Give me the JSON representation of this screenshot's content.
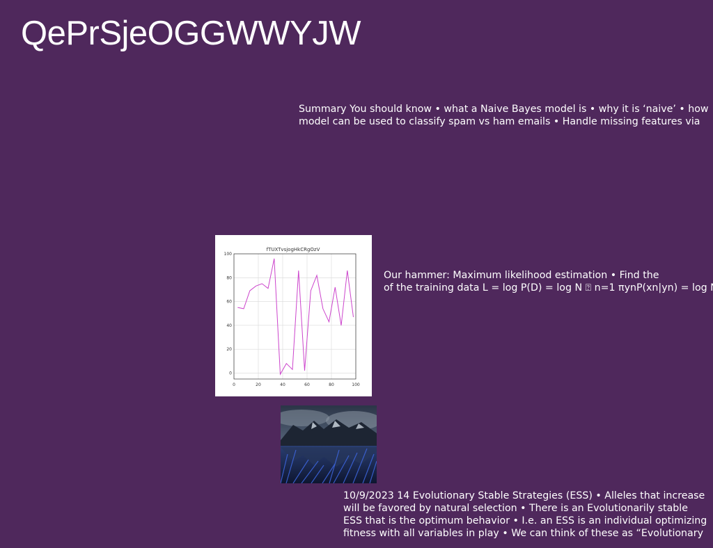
{
  "slide": {
    "title": "QePrSjeOGGWWYJW",
    "background_color": "#4f285c",
    "text_color": "#ffffff"
  },
  "text_blocks": {
    "summary": {
      "lines": [
        "Summary You should know • what a Naive Bayes model is • why it is ‘naive’ • how",
        "model can be used to classify spam vs ham emails • Handle missing features via"
      ]
    },
    "hammer": {
      "lines": [
        "Our hammer: Maximum likelihood estimation • Find the",
        "of the training data L = log P(D) = log N ⍰ n=1 πynP(xn|yn) = log N"
      ]
    },
    "ess": {
      "lines": [
        "10/9/2023 14 Evolutionary Stable Strategies (ESS) • Alleles that increase",
        "will be favored by natural selection • There is an Evolutionarily stable",
        "ESS that is the optimum behavior • I.e. an ESS is an individual optimizing",
        "fitness with all variables in play • We can think of these as “Evolutionary"
      ]
    }
  },
  "landscape_photo": {
    "icon": "mountain-lake-photo",
    "colors": [
      "#1e2a40",
      "#3556b8",
      "#c9d2dc"
    ]
  },
  "chart_data": {
    "type": "line",
    "title": "fTUXTvsjogHkCRgOzV",
    "xlabel": "",
    "ylabel": "",
    "xlim": [
      0,
      100
    ],
    "ylim": [
      -5,
      100
    ],
    "xticks": [
      0,
      20,
      40,
      60,
      80,
      100
    ],
    "yticks": [
      0,
      20,
      40,
      60,
      80,
      100
    ],
    "grid": true,
    "line_color": "#cc44cc",
    "series": [
      {
        "x": [
          3,
          8,
          13,
          18,
          23,
          28,
          33,
          38,
          43,
          48,
          53,
          58,
          63,
          68,
          73,
          78,
          83,
          88,
          93,
          98
        ],
        "values": [
          55,
          54,
          69,
          73,
          75,
          71,
          96,
          -1,
          8,
          3,
          86,
          2,
          69,
          82,
          54,
          43,
          72,
          40,
          86,
          47
        ]
      }
    ]
  }
}
